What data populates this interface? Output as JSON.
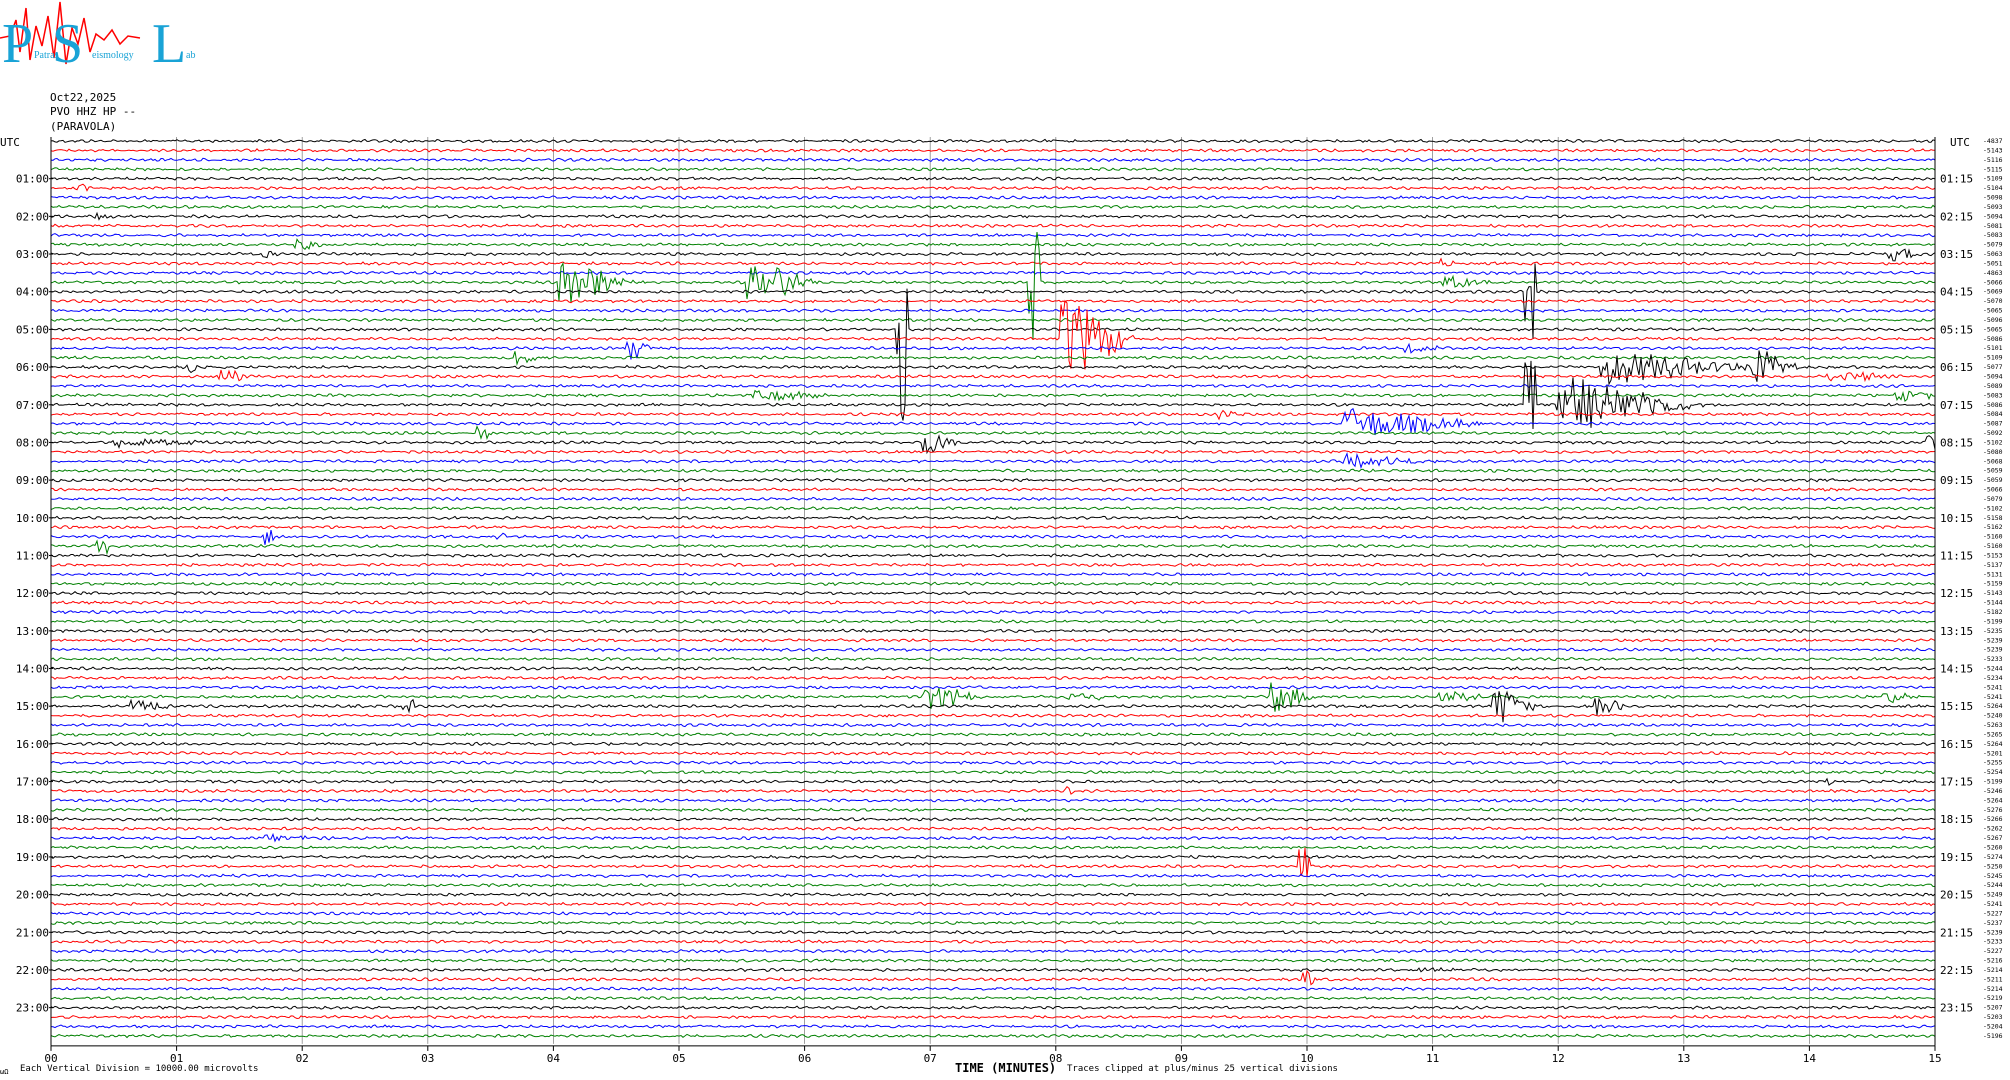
{
  "logo": {
    "letters": [
      "P",
      "S",
      "L"
    ],
    "words": [
      "Patras",
      "eismology",
      "ab"
    ]
  },
  "header": {
    "date": "Oct22,2025",
    "station": "PVO HHZ HP --",
    "site": "(PARAVOLA)"
  },
  "footer": {
    "scale": "Each Vertical Division = 10000.00 microvolts",
    "clip": "Traces clipped at plus/minus 25 vertical divisions",
    "mark": "ωΩ"
  },
  "colors": {
    "trace_cycle": [
      "#000000",
      "#ff0000",
      "#0000ff",
      "#008000"
    ],
    "grid": "#888888"
  },
  "chart_data": {
    "type": "line",
    "title": "Oct22,2025",
    "xlabel": "TIME (MINUTES)",
    "ylabel": "UTC",
    "xlim": [
      0,
      15
    ],
    "x_ticks": [
      "00",
      "01",
      "02",
      "03",
      "04",
      "05",
      "06",
      "07",
      "08",
      "09",
      "10",
      "11",
      "12",
      "13",
      "14",
      "15"
    ],
    "left_axis_label": "UTC",
    "right_axis_label": "UTC",
    "left_hour_labels": [
      "01:00",
      "02:00",
      "03:00",
      "04:00",
      "05:00",
      "06:00",
      "07:00",
      "08:00",
      "09:00",
      "10:00",
      "11:00",
      "12:00",
      "13:00",
      "14:00",
      "15:00",
      "16:00",
      "17:00",
      "18:00",
      "19:00",
      "20:00",
      "21:00",
      "22:00",
      "23:00"
    ],
    "right_hour_labels": [
      "01:15",
      "02:15",
      "03:15",
      "04:15",
      "05:15",
      "06:15",
      "07:15",
      "08:15",
      "09:15",
      "10:15",
      "11:15",
      "12:15",
      "13:15",
      "14:15",
      "15:15",
      "16:15",
      "17:15",
      "18:15",
      "19:15",
      "20:15",
      "21:15",
      "22:15",
      "23:15"
    ],
    "trace_count": 96,
    "trace_minutes": 15,
    "trace_offsets": [
      "-4837",
      "-5143",
      "-5116",
      "-5115",
      "-5109",
      "-5104",
      "-5098",
      "-5093",
      "-5094",
      "-5081",
      "-5083",
      "-5079",
      "-5063",
      "-5051",
      "-4863",
      "-5066",
      "-5069",
      "-5070",
      "-5065",
      "-5096",
      "-5065",
      "-5086",
      "-5101",
      "-5109",
      "-5077",
      "-5094",
      "-5089",
      "-5083",
      "-5086",
      "-5084",
      "-5087",
      "-5092",
      "-5102",
      "-5080",
      "-5068",
      "-5059",
      "-5059",
      "-5066",
      "-5079",
      "-5102",
      "-5158",
      "-5162",
      "-5160",
      "-5160",
      "-5153",
      "-5137",
      "-5131",
      "-5159",
      "-5143",
      "-5144",
      "-5182",
      "-5199",
      "-5235",
      "-5239",
      "-5239",
      "-5233",
      "-5244",
      "-5234",
      "-5241",
      "-5241",
      "-5264",
      "-5240",
      "-5263",
      "-5265",
      "-5264",
      "-5201",
      "-5255",
      "-5254",
      "-5199",
      "-5246",
      "-5264",
      "-5276",
      "-5266",
      "-5262",
      "-5267",
      "-5260",
      "-5274",
      "-5250",
      "-5245",
      "-5244",
      "-5249",
      "-5241",
      "-5227",
      "-5237",
      "-5239",
      "-5233",
      "-5227",
      "-5216",
      "-5214",
      "-5211",
      "-5214",
      "-5219",
      "-5207",
      "-5203",
      "-5204",
      "-5196"
    ],
    "events": [
      {
        "trace": 5,
        "minute": 0.2,
        "amp": 6,
        "dur": 0.15
      },
      {
        "trace": 8,
        "minute": 0.35,
        "amp": 5,
        "dur": 0.2
      },
      {
        "trace": 12,
        "minute": 1.7,
        "amp": 4,
        "dur": 0.2
      },
      {
        "trace": 11,
        "minute": 1.95,
        "amp": 6,
        "dur": 0.3
      },
      {
        "trace": 13,
        "minute": 11.05,
        "amp": 4,
        "dur": 0.2
      },
      {
        "trace": 12,
        "minute": 14.65,
        "amp": 8,
        "dur": 0.3
      },
      {
        "trace": 15,
        "minute": 4.05,
        "amp": 26,
        "dur": 0.6
      },
      {
        "trace": 15,
        "minute": 5.55,
        "amp": 26,
        "dur": 0.6
      },
      {
        "trace": 15,
        "minute": 11.1,
        "amp": 8,
        "dur": 0.4
      },
      {
        "trace": 15,
        "minute": 7.8,
        "amp": 60,
        "dur": 0.05
      },
      {
        "trace": 16,
        "minute": 11.75,
        "amp": 50,
        "dur": 0.05
      },
      {
        "trace": 21,
        "minute": 8.05,
        "amp": 48,
        "dur": 0.6
      },
      {
        "trace": 20,
        "minute": 6.75,
        "amp": 160,
        "dur": 0.05
      },
      {
        "trace": 23,
        "minute": 3.7,
        "amp": 10,
        "dur": 0.2
      },
      {
        "trace": 22,
        "minute": 4.6,
        "amp": 14,
        "dur": 0.2
      },
      {
        "trace": 22,
        "minute": 10.8,
        "amp": 5,
        "dur": 0.3
      },
      {
        "trace": 24,
        "minute": 1.1,
        "amp": 7,
        "dur": 0.1
      },
      {
        "trace": 25,
        "minute": 1.35,
        "amp": 9,
        "dur": 0.3
      },
      {
        "trace": 24,
        "minute": 12.35,
        "amp": 18,
        "dur": 1.3
      },
      {
        "trace": 24,
        "minute": 13.55,
        "amp": 22,
        "dur": 0.4
      },
      {
        "trace": 25,
        "minute": 14.15,
        "amp": 6,
        "dur": 0.7
      },
      {
        "trace": 27,
        "minute": 5.6,
        "amp": 6,
        "dur": 0.8
      },
      {
        "trace": 27,
        "minute": 14.7,
        "amp": 6,
        "dur": 0.5
      },
      {
        "trace": 28,
        "minute": 12.0,
        "amp": 30,
        "dur": 1.2
      },
      {
        "trace": 28,
        "minute": 11.75,
        "amp": 60,
        "dur": 0.05
      },
      {
        "trace": 29,
        "minute": 9.3,
        "amp": 5,
        "dur": 0.3
      },
      {
        "trace": 30,
        "minute": 10.3,
        "amp": 16,
        "dur": 1.2
      },
      {
        "trace": 31,
        "minute": 3.4,
        "amp": 10,
        "dur": 0.15
      },
      {
        "trace": 32,
        "minute": 0.5,
        "amp": 5,
        "dur": 1.0
      },
      {
        "trace": 32,
        "minute": 6.95,
        "amp": 14,
        "dur": 0.3
      },
      {
        "trace": 32,
        "minute": 14.95,
        "amp": 10,
        "dur": 0.05
      },
      {
        "trace": 34,
        "minute": 10.3,
        "amp": 7,
        "dur": 0.8
      },
      {
        "trace": 43,
        "minute": 0.38,
        "amp": 8,
        "dur": 0.05
      },
      {
        "trace": 42,
        "minute": 1.72,
        "amp": 8,
        "dur": 0.05
      },
      {
        "trace": 42,
        "minute": 3.55,
        "amp": 4,
        "dur": 0.05
      },
      {
        "trace": 59,
        "minute": 6.95,
        "amp": 14,
        "dur": 0.5
      },
      {
        "trace": 59,
        "minute": 8.1,
        "amp": 4,
        "dur": 0.6
      },
      {
        "trace": 59,
        "minute": 9.7,
        "amp": 18,
        "dur": 0.4
      },
      {
        "trace": 59,
        "minute": 11.05,
        "amp": 8,
        "dur": 0.4
      },
      {
        "trace": 59,
        "minute": 14.6,
        "amp": 7,
        "dur": 0.3
      },
      {
        "trace": 60,
        "minute": 0.65,
        "amp": 8,
        "dur": 0.35
      },
      {
        "trace": 60,
        "minute": 2.82,
        "amp": 8,
        "dur": 0.05
      },
      {
        "trace": 60,
        "minute": 11.5,
        "amp": 20,
        "dur": 0.4
      },
      {
        "trace": 60,
        "minute": 12.3,
        "amp": 10,
        "dur": 0.3
      },
      {
        "trace": 69,
        "minute": 8.1,
        "amp": 4,
        "dur": 0.2
      },
      {
        "trace": 68,
        "minute": 14.15,
        "amp": 3,
        "dur": 0.1
      },
      {
        "trace": 74,
        "minute": 1.7,
        "amp": 3,
        "dur": 0.6
      },
      {
        "trace": 77,
        "minute": 9.95,
        "amp": 20,
        "dur": 0.05
      },
      {
        "trace": 89,
        "minute": 9.98,
        "amp": 10,
        "dur": 0.05
      },
      {
        "trace": 88,
        "minute": 10.9,
        "amp": 3,
        "dur": 0.4
      }
    ]
  }
}
